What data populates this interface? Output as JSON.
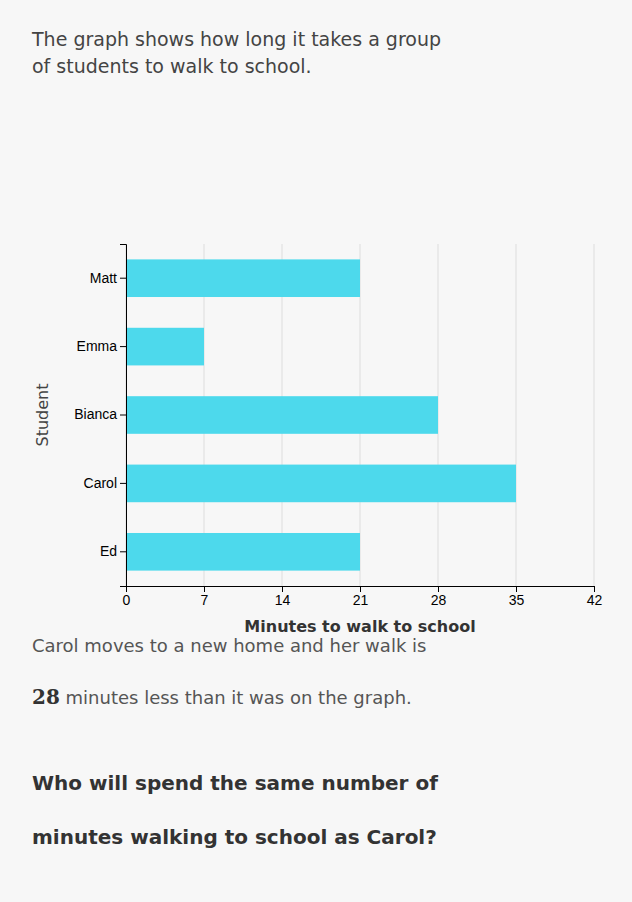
{
  "chart_data": {
    "type": "bar",
    "orientation": "horizontal",
    "title": [
      "The graph shows how long it takes a group",
      "of students to walk to school."
    ],
    "categories": [
      "Ed",
      "Carol",
      "Bianca",
      "Emma",
      "Matt"
    ],
    "values": [
      21,
      35,
      28,
      7,
      21
    ],
    "color": "#4DD9EC",
    "xlabel": "Minutes to walk to school",
    "ylabel": "Student",
    "xlim": [
      0,
      42
    ],
    "xticks": [
      0,
      7,
      14,
      21,
      28,
      35,
      42
    ],
    "grid": true,
    "annotations": [
      [
        "Carol moves to a new home and her walk is"
      ],
      [
        "28",
        " minutes less than it was on the graph."
      ],
      [
        "Who will spend the same number of"
      ],
      [
        "minutes walking to school as Carol?"
      ]
    ]
  }
}
